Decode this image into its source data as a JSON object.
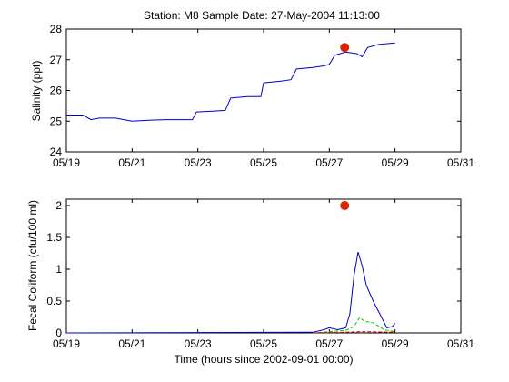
{
  "chart_data": [
    {
      "type": "line",
      "title": "Station: M8  Sample Date: 27-May-2004 11:13:00",
      "xlabel": "",
      "ylabel": "Salinity (ppt)",
      "xlim": [
        "05/19",
        "05/31"
      ],
      "ylim": [
        24,
        28
      ],
      "x_ticks": [
        "05/19",
        "05/21",
        "05/23",
        "05/25",
        "05/27",
        "05/29",
        "05/31"
      ],
      "y_ticks": [
        "24",
        "25",
        "26",
        "27",
        "28"
      ],
      "grid": false,
      "series": [
        {
          "color": "#0000cc",
          "x": [
            "05/19 00:00",
            "05/19 12:00",
            "05/19 18:00",
            "05/20 00:00",
            "05/20 12:00",
            "05/20 18:00",
            "05/21 00:00",
            "05/21 12:00",
            "05/22 00:00",
            "05/22 12:00",
            "05/22 20:00",
            "05/22 23:00",
            "05/23 12:00",
            "05/23 20:00",
            "05/24 00:00",
            "05/24 12:00",
            "05/24 22:00",
            "05/25 00:00",
            "05/25 12:00",
            "05/25 20:00",
            "05/26 00:00",
            "05/26 12:00",
            "05/26 20:00",
            "05/27 00:00",
            "05/27 04:00",
            "05/27 12:00",
            "05/27 20:00",
            "05/28 00:00",
            "05/28 04:00",
            "05/28 12:00",
            "05/29 00:00"
          ],
          "y": [
            25.2,
            25.2,
            25.05,
            25.1,
            25.1,
            25.05,
            25.0,
            25.03,
            25.05,
            25.05,
            25.05,
            25.3,
            25.33,
            25.35,
            25.75,
            25.8,
            25.8,
            26.25,
            26.3,
            26.35,
            26.7,
            26.75,
            26.8,
            26.85,
            27.15,
            27.25,
            27.2,
            27.1,
            27.4,
            27.5,
            27.55
          ]
        }
      ],
      "markers": [
        {
          "x": "05/27 11:13",
          "y": 27.4,
          "color": "#dd2200"
        }
      ]
    },
    {
      "type": "line",
      "title": "",
      "xlabel": "Time (hours since 2002-09-01 00:00)",
      "ylabel": "Fecal Coliform (cfu/100 ml)",
      "xlim": [
        "05/19",
        "05/31"
      ],
      "ylim": [
        0,
        2.1
      ],
      "x_ticks": [
        "05/19",
        "05/21",
        "05/23",
        "05/25",
        "05/27",
        "05/29",
        "05/31"
      ],
      "y_ticks": [
        "0",
        "0.5",
        "1",
        "1.5",
        "2"
      ],
      "grid": false,
      "series": [
        {
          "color": "#0000cc",
          "x": [
            "05/19 00:00",
            "05/26 12:00",
            "05/26 20:00",
            "05/27 00:00",
            "05/27 06:00",
            "05/27 12:00",
            "05/27 15:00",
            "05/27 18:00",
            "05/27 21:00",
            "05/28 00:00",
            "05/28 03:00",
            "05/28 08:00",
            "05/28 14:00",
            "05/28 18:00",
            "05/28 22:00",
            "05/29 00:00"
          ],
          "y": [
            0.0,
            0.01,
            0.05,
            0.08,
            0.05,
            0.08,
            0.3,
            0.9,
            1.27,
            1.05,
            0.75,
            0.5,
            0.25,
            0.08,
            0.1,
            0.15
          ]
        },
        {
          "color": "#00cc00",
          "dash": true,
          "x": [
            "05/26 12:00",
            "05/27 00:00",
            "05/27 12:00",
            "05/27 18:00",
            "05/27 22:00",
            "05/28 02:00",
            "05/28 08:00",
            "05/28 16:00",
            "05/29 00:00"
          ],
          "y": [
            0.0,
            0.02,
            0.04,
            0.1,
            0.24,
            0.18,
            0.16,
            0.05,
            0.02
          ]
        },
        {
          "color": "#cc0000",
          "dash": true,
          "x": [
            "05/26 12:00",
            "05/27 12:00",
            "05/28 00:00",
            "05/29 00:00"
          ],
          "y": [
            0.0,
            0.01,
            0.02,
            0.01
          ]
        }
      ],
      "markers": [
        {
          "x": "05/27 11:13",
          "y": 2.0,
          "color": "#dd2200"
        }
      ]
    }
  ]
}
